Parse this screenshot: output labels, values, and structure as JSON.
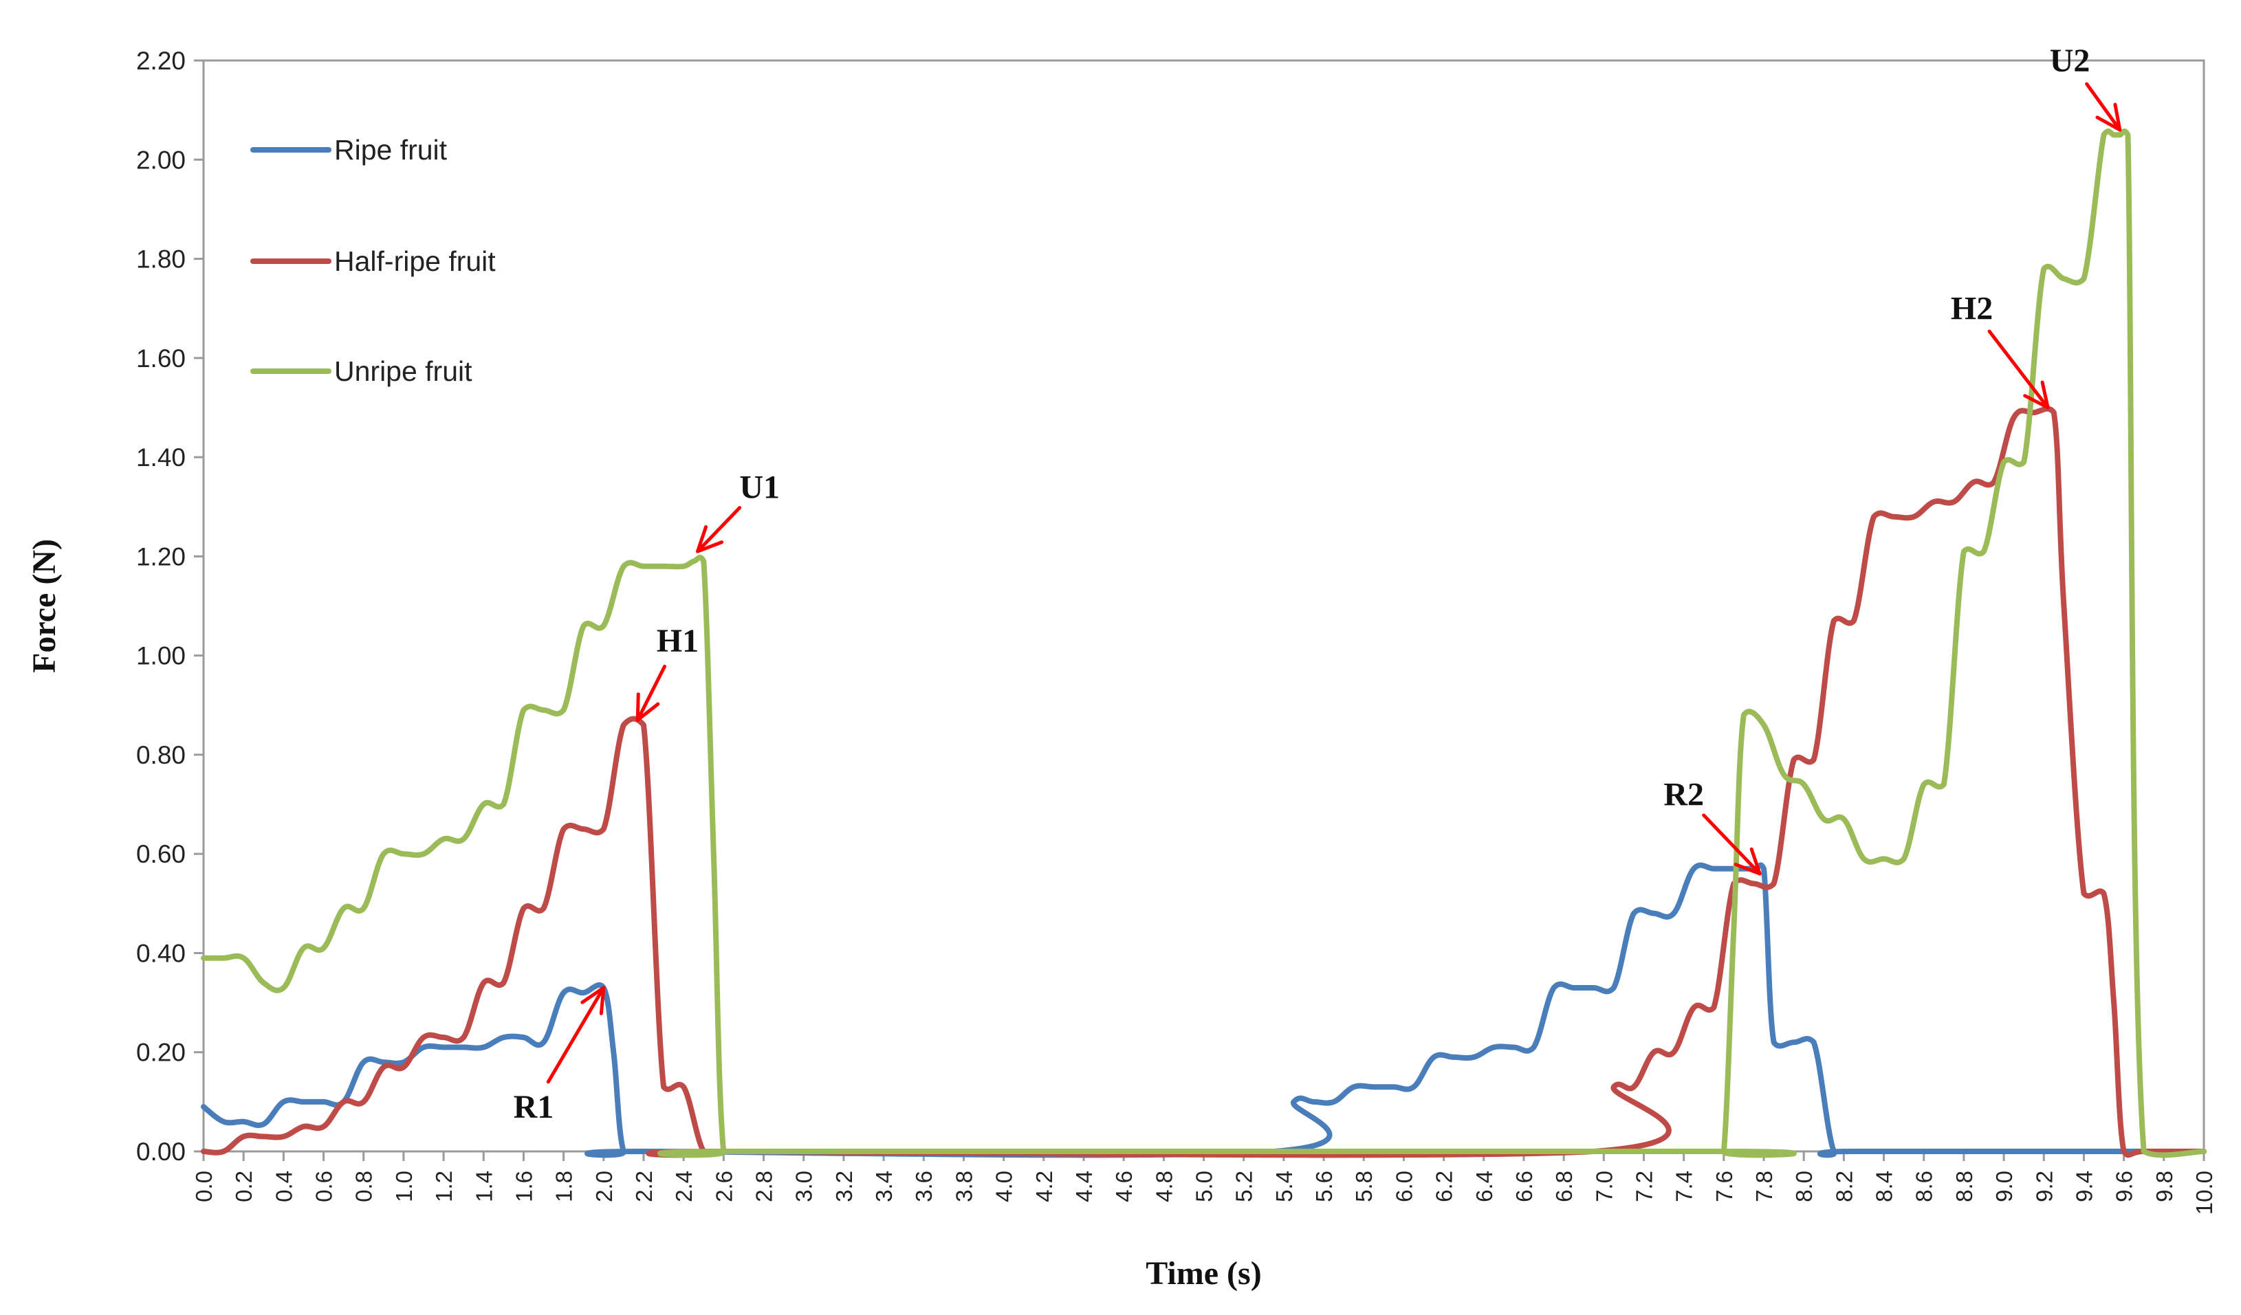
{
  "chart_data": {
    "type": "line",
    "title": "",
    "xlabel": "Time (s)",
    "ylabel": "Force (N)",
    "xlim": [
      0,
      10
    ],
    "ylim": [
      0,
      2.2
    ],
    "ytick_step": 0.2,
    "xtick_step": 0.2,
    "ytick_labels": [
      "0.00",
      "0.20",
      "0.40",
      "0.60",
      "0.80",
      "1.00",
      "1.20",
      "1.40",
      "1.60",
      "1.80",
      "2.00",
      "2.20"
    ],
    "xtick_labels": [
      "0.0",
      "0.2",
      "0.4",
      "0.6",
      "0.8",
      "1.0",
      "1.2",
      "1.4",
      "1.6",
      "1.8",
      "2.0",
      "2.2",
      "2.4",
      "2.6",
      "2.8",
      "3.0",
      "3.2",
      "3.4",
      "3.6",
      "3.8",
      "4.0",
      "4.2",
      "4.4",
      "4.6",
      "4.8",
      "5.0",
      "5.2",
      "5.4",
      "5.6",
      "5.8",
      "6.0",
      "6.2",
      "6.4",
      "6.6",
      "6.8",
      "7.0",
      "7.2",
      "7.4",
      "7.6",
      "7.8",
      "8.0",
      "8.2",
      "8.4",
      "8.6",
      "8.8",
      "9.0",
      "9.2",
      "9.4",
      "9.6",
      "9.8",
      "10.0"
    ],
    "grid": false,
    "legend_position": "top-left",
    "series": [
      {
        "name": "Ripe fruit",
        "color": "#4a7ebb",
        "x": [
          0.0,
          0.1,
          0.2,
          0.3,
          0.4,
          0.5,
          0.6,
          0.7,
          0.8,
          0.9,
          1.0,
          1.1,
          1.2,
          1.3,
          1.4,
          1.5,
          1.6,
          1.7,
          1.8,
          1.9,
          2.0,
          2.05,
          2.1,
          2.2,
          5.35,
          5.45,
          5.55,
          5.65,
          5.75,
          5.85,
          5.95,
          6.05,
          6.15,
          6.25,
          6.35,
          6.45,
          6.55,
          6.65,
          6.75,
          6.85,
          6.95,
          7.05,
          7.15,
          7.25,
          7.35,
          7.45,
          7.55,
          7.65,
          7.75,
          7.8,
          7.85,
          7.95,
          8.05,
          8.15,
          8.25,
          10.0
        ],
        "values": [
          0.09,
          0.06,
          0.06,
          0.055,
          0.1,
          0.1,
          0.1,
          0.1,
          0.18,
          0.18,
          0.18,
          0.21,
          0.21,
          0.21,
          0.21,
          0.23,
          0.23,
          0.22,
          0.32,
          0.32,
          0.33,
          0.2,
          0.0,
          0.0,
          0.0,
          0.1,
          0.1,
          0.1,
          0.13,
          0.13,
          0.13,
          0.13,
          0.19,
          0.19,
          0.19,
          0.21,
          0.21,
          0.21,
          0.33,
          0.33,
          0.33,
          0.33,
          0.48,
          0.48,
          0.48,
          0.57,
          0.57,
          0.57,
          0.57,
          0.57,
          0.22,
          0.22,
          0.22,
          0.0,
          0.0,
          0.0
        ]
      },
      {
        "name": "Half-ripe fruit",
        "color": "#be4b48",
        "x": [
          0.0,
          0.1,
          0.2,
          0.3,
          0.4,
          0.5,
          0.6,
          0.7,
          0.8,
          0.9,
          1.0,
          1.1,
          1.2,
          1.3,
          1.4,
          1.5,
          1.6,
          1.7,
          1.8,
          1.9,
          2.0,
          2.1,
          2.2,
          2.3,
          2.4,
          2.5,
          2.6,
          6.95,
          7.05,
          7.15,
          7.25,
          7.35,
          7.45,
          7.55,
          7.65,
          7.75,
          7.85,
          7.95,
          8.05,
          8.15,
          8.25,
          8.35,
          8.45,
          8.55,
          8.65,
          8.75,
          8.85,
          8.95,
          9.05,
          9.15,
          9.25,
          9.3,
          9.4,
          9.5,
          9.55,
          9.6,
          9.7,
          10.0
        ],
        "values": [
          0.0,
          0.0,
          0.03,
          0.03,
          0.03,
          0.05,
          0.05,
          0.1,
          0.1,
          0.17,
          0.17,
          0.23,
          0.23,
          0.23,
          0.34,
          0.34,
          0.49,
          0.49,
          0.65,
          0.65,
          0.65,
          0.86,
          0.86,
          0.13,
          0.13,
          0.0,
          0.0,
          0.0,
          0.13,
          0.13,
          0.2,
          0.2,
          0.29,
          0.29,
          0.54,
          0.54,
          0.54,
          0.79,
          0.79,
          1.07,
          1.07,
          1.28,
          1.28,
          1.28,
          1.31,
          1.31,
          1.35,
          1.35,
          1.48,
          1.49,
          1.49,
          1.1,
          0.52,
          0.52,
          0.3,
          0.0,
          0.0,
          0.0
        ]
      },
      {
        "name": "Unripe fruit",
        "color": "#9bbb59",
        "x": [
          0.0,
          0.1,
          0.2,
          0.3,
          0.4,
          0.5,
          0.6,
          0.7,
          0.8,
          0.9,
          1.0,
          1.1,
          1.2,
          1.3,
          1.4,
          1.5,
          1.6,
          1.7,
          1.8,
          1.9,
          2.0,
          2.1,
          2.2,
          2.3,
          2.4,
          2.45,
          2.5,
          2.55,
          2.6,
          2.7,
          7.55,
          7.6,
          7.65,
          7.7,
          7.8,
          7.9,
          8.0,
          8.1,
          8.2,
          8.3,
          8.4,
          8.5,
          8.6,
          8.7,
          8.8,
          8.9,
          9.0,
          9.1,
          9.2,
          9.3,
          9.4,
          9.5,
          9.55,
          9.58,
          9.62,
          9.7,
          10.0
        ],
        "values": [
          0.39,
          0.39,
          0.39,
          0.34,
          0.33,
          0.41,
          0.41,
          0.49,
          0.49,
          0.6,
          0.6,
          0.6,
          0.63,
          0.63,
          0.7,
          0.7,
          0.89,
          0.89,
          0.89,
          1.06,
          1.06,
          1.18,
          1.18,
          1.18,
          1.18,
          1.19,
          1.19,
          0.6,
          0.0,
          0.0,
          0.0,
          0.0,
          0.45,
          0.88,
          0.86,
          0.76,
          0.74,
          0.67,
          0.67,
          0.59,
          0.59,
          0.59,
          0.74,
          0.74,
          1.21,
          1.21,
          1.39,
          1.39,
          1.78,
          1.76,
          1.76,
          2.05,
          2.05,
          2.05,
          2.05,
          0.0,
          0.0
        ]
      }
    ],
    "annotations": [
      {
        "label": "R1",
        "color": "#ff0000",
        "points_to": [
          2.0,
          0.33
        ],
        "text_at": [
          1.65,
          0.09
        ]
      },
      {
        "label": "H1",
        "color": "#ff0000",
        "points_to": [
          2.17,
          0.87
        ],
        "text_at": [
          2.37,
          1.03
        ]
      },
      {
        "label": "U1",
        "color": "#ff0000",
        "points_to": [
          2.47,
          1.21
        ],
        "text_at": [
          2.78,
          1.34
        ]
      },
      {
        "label": "R2",
        "color": "#ff0000",
        "points_to": [
          7.78,
          0.56
        ],
        "text_at": [
          7.4,
          0.72
        ]
      },
      {
        "label": "H2",
        "color": "#ff0000",
        "points_to": [
          9.22,
          1.5
        ],
        "text_at": [
          8.84,
          1.7
        ]
      },
      {
        "label": "U2",
        "color": "#ff0000",
        "points_to": [
          9.58,
          2.06
        ],
        "text_at": [
          9.33,
          2.2
        ]
      }
    ]
  }
}
